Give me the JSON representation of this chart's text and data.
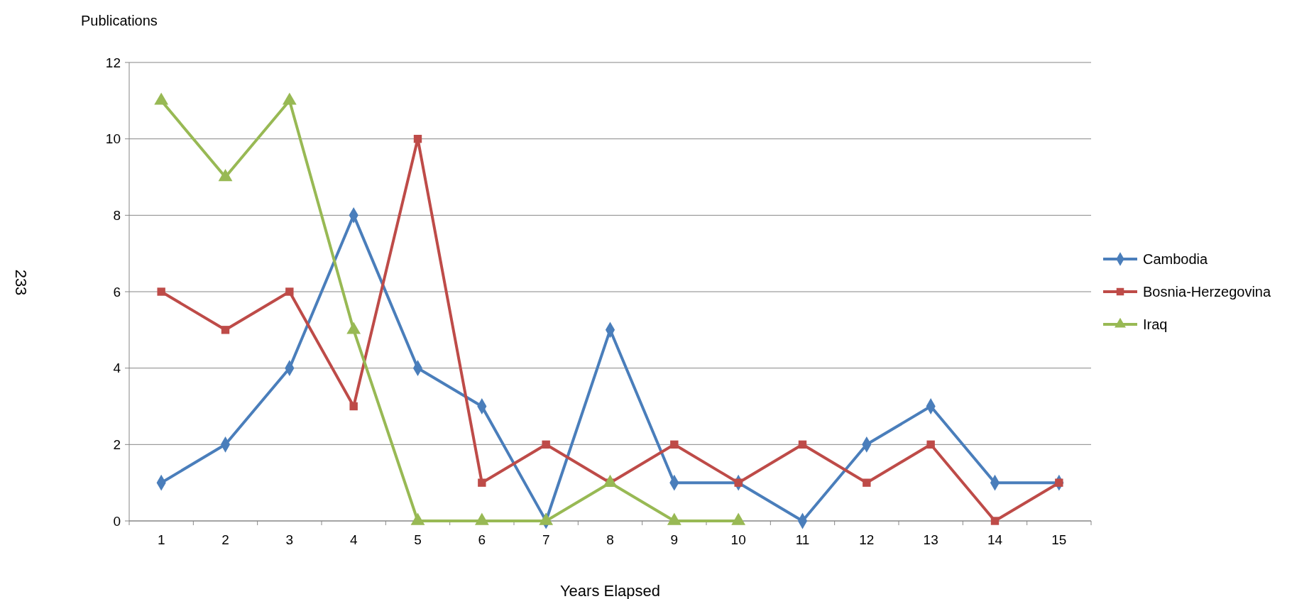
{
  "chart_data": {
    "type": "line",
    "ylabel": "Publications",
    "xlabel": "Years Elapsed",
    "annotations": [
      "233"
    ],
    "categories": [
      "1",
      "2",
      "3",
      "4",
      "5",
      "6",
      "7",
      "8",
      "9",
      "10",
      "11",
      "12",
      "13",
      "14",
      "15"
    ],
    "series": [
      {
        "name": "Cambodia",
        "color": "#4a7ebb",
        "marker": "diamond",
        "values": [
          1,
          2,
          4,
          8,
          4,
          3,
          0,
          5,
          1,
          1,
          0,
          2,
          3,
          1,
          1
        ]
      },
      {
        "name": "Bosnia-Herzegovina",
        "color": "#be4b48",
        "marker": "square",
        "values": [
          6,
          5,
          6,
          3,
          10,
          1,
          2,
          1,
          2,
          1,
          2,
          1,
          2,
          0,
          1
        ]
      },
      {
        "name": "Iraq",
        "color": "#98b954",
        "marker": "triangle",
        "values": [
          11,
          9,
          11,
          5,
          0,
          0,
          0,
          1,
          0,
          0,
          null,
          null,
          null,
          null,
          null
        ]
      }
    ],
    "ylim": [
      0,
      12
    ],
    "yticks": [
      0,
      2,
      4,
      6,
      8,
      10,
      12
    ],
    "grid": "y",
    "legend": "right",
    "line_style": "solid"
  }
}
